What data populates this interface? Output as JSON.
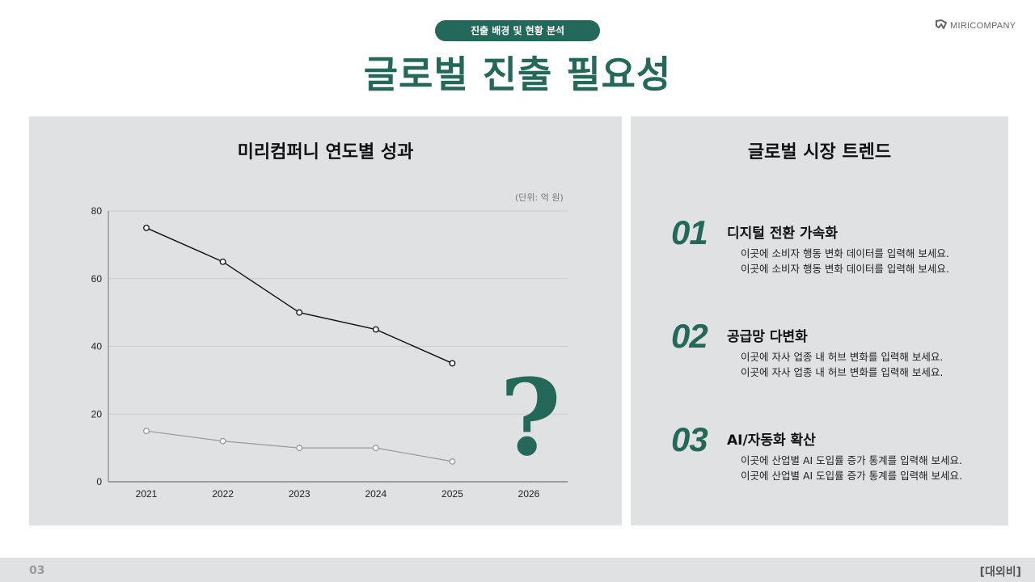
{
  "header": {
    "section_pill": "진출 배경 및 현황 분석",
    "title": "글로벌 진출 필요성",
    "logo_text": "MIRICOMPANY",
    "logo_icon": "miricompany-logo-icon"
  },
  "left_panel": {
    "title": "미리컴퍼니 연도별 성과",
    "unit_label": "(단위: 억 원)",
    "question_mark": "?",
    "question_mark_color": "#24685a"
  },
  "chart_data": {
    "type": "line",
    "title": "미리컴퍼니 연도별 성과",
    "xlabel": "",
    "ylabel": "",
    "unit": "(단위: 억 원)",
    "categories": [
      "2021",
      "2022",
      "2023",
      "2024",
      "2025",
      "2026"
    ],
    "series": [
      {
        "name": "series-1",
        "color": "#111111",
        "values": [
          75,
          65,
          50,
          45,
          35,
          null
        ]
      },
      {
        "name": "series-2",
        "color": "#999999",
        "values": [
          15,
          12,
          10,
          10,
          6,
          null
        ]
      }
    ],
    "yticks": [
      0,
      20,
      40,
      60,
      80
    ],
    "ylim": [
      0,
      80
    ],
    "grid": true,
    "legend": "none",
    "annotations": [
      "? (2026 unknown)"
    ]
  },
  "right_panel": {
    "title": "글로벌 시장 트렌드",
    "items": [
      {
        "num": "01",
        "heading": "디지털 전환 가속화",
        "lines": [
          "이곳에 소비자 행동 변화 데이터를 입력해 보세요.",
          "이곳에 소비자 행동 변화 데이터를 입력해 보세요."
        ]
      },
      {
        "num": "02",
        "heading": "공급망 다변화",
        "lines": [
          "이곳에 자사 업종 내 허브 변화를 입력해 보세요.",
          "이곳에 자사 업종 내 허브 변화를 입력해 보세요."
        ]
      },
      {
        "num": "03",
        "heading": "AI/자동화 확산",
        "lines": [
          "이곳에 산업별 AI 도입률 증가 통계를 입력해 보세요.",
          "이곳에 산업별 AI 도입률 증가 통계를 입력해 보세요."
        ]
      }
    ]
  },
  "footer": {
    "page_number": "03",
    "tag": "[대외비]"
  },
  "colors": {
    "accent": "#24685a",
    "panel_bg": "#e0e1e2"
  }
}
